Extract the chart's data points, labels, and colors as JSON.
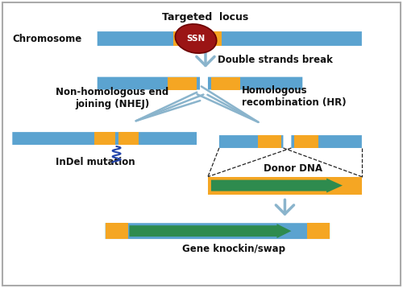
{
  "bg_color": "#ffffff",
  "border_color": "#aaaaaa",
  "blue_bar_color": "#5ba3d0",
  "orange_seg_color": "#f5a623",
  "green_arrow_color": "#2e8b4e",
  "ssn_color": "#9b1515",
  "arrow_color": "#8ab4cc",
  "dashed_line_color": "#222222",
  "text_color": "#111111",
  "title": "Targeted  locus",
  "chrom_label": "Chromosome",
  "dsb_label": "Double strands break",
  "nhej_label": "Non-homologous end\njoining (NHEJ)",
  "hr_label": "Homologous\nrecombination (HR)",
  "indel_label": "InDel mutation",
  "donor_label": "Donor DNA",
  "knockin_label": "Gene knockin/swap",
  "ssn_label": "SSN"
}
